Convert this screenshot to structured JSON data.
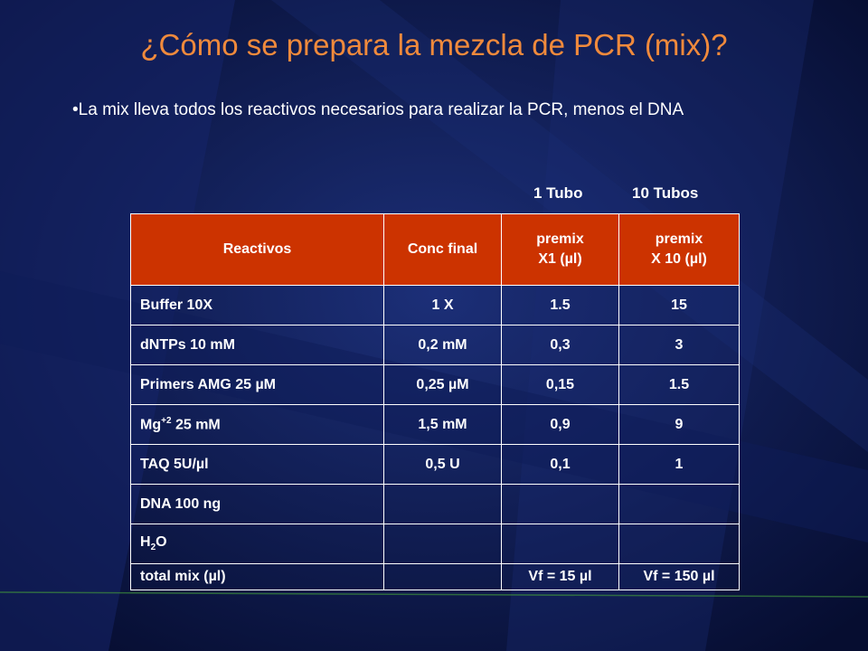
{
  "title": "¿Cómo se prepara la mezcla de PCR (mix)?",
  "bullet": "•La mix lleva todos los reactivos necesarios para realizar la PCR, menos el DNA",
  "column_labels": {
    "tubo1": "1 Tubo",
    "tubo10": "10 Tubos"
  },
  "table": {
    "headers": {
      "reactivos": "Reactivos",
      "conc": "Conc final",
      "premix1_line1": "premix",
      "premix1_line2": "X1 (µl)",
      "premix10_line1": "premix",
      "premix10_line2": "X 10 (µl)"
    },
    "rows": [
      {
        "reactivo": "Buffer 10X",
        "conc": "1 X",
        "x1": "1.5",
        "x10": "15"
      },
      {
        "reactivo": "dNTPs 10 mM",
        "conc": "0,2 mM",
        "x1": "0,3",
        "x10": "3"
      },
      {
        "reactivo": "Primers AMG  25 µM",
        "conc": "0,25 µM",
        "x1": "0,15",
        "x10": "1.5"
      },
      {
        "reactivo_base": "Mg",
        "reactivo_sup": "+2",
        "reactivo_rest": " 25 mM",
        "conc": "1,5 mM",
        "x1": "0,9",
        "x10": "9"
      },
      {
        "reactivo": "TAQ 5U/µl",
        "conc": "0,5 U",
        "x1": "0,1",
        "x10": "1"
      },
      {
        "reactivo": "DNA 100 ng",
        "conc": "",
        "x1": "",
        "x10": ""
      },
      {
        "reactivo_base": "H",
        "reactivo_sub": "2",
        "reactivo_rest": "O",
        "conc": "",
        "x1": "",
        "x10": ""
      },
      {
        "reactivo": "total mix (µl)",
        "conc": "",
        "x1": "Vf = 15 µl",
        "x10": "Vf = 150 µl"
      }
    ]
  },
  "colors": {
    "background": "#0a1540",
    "title": "#f08a3c",
    "header_fill": "#cc3300",
    "text": "#ffffff"
  }
}
